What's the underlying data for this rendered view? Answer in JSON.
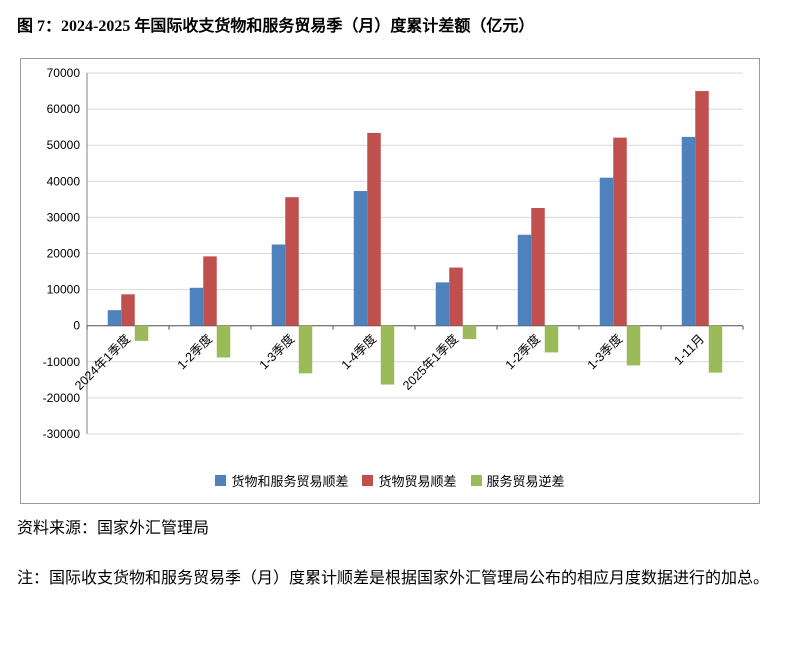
{
  "title": "图 7：2024-2025 年国际收支货物和服务贸易季（月）度累计差额（亿元）",
  "source": "资料来源：国家外汇管理局",
  "note": "注：国际收支货物和服务贸易季（月）度累计顺差是根据国家外汇管理局公布的相应月度数据进行的加总。",
  "chart_data": {
    "type": "bar",
    "title": "2024-2025 年国际收支货物和服务贸易季（月）度累计差额（亿元）",
    "categories": [
      "2024年1季度",
      "1-2季度",
      "1-3季度",
      "1-4季度",
      "2025年1季度",
      "1-2季度",
      "1-3季度",
      "1-11月"
    ],
    "series": [
      {
        "name": "货物和服务贸易顺差",
        "color": "#4f81bd",
        "values": [
          4300,
          10500,
          22500,
          37300,
          12000,
          25200,
          41000,
          52300
        ]
      },
      {
        "name": "货物贸易顺差",
        "color": "#c0504d",
        "values": [
          8700,
          19200,
          35600,
          53400,
          16100,
          32600,
          52100,
          65000
        ]
      },
      {
        "name": "服务贸易逆差",
        "color": "#9bbb59",
        "values": [
          -4200,
          -8800,
          -13200,
          -16300,
          -3700,
          -7400,
          -11000,
          -13000
        ]
      }
    ],
    "xlabel": "",
    "ylabel": "",
    "ylim": [
      -30000,
      70000
    ],
    "ytick": 10000,
    "grid": true,
    "legend_position": "bottom"
  }
}
